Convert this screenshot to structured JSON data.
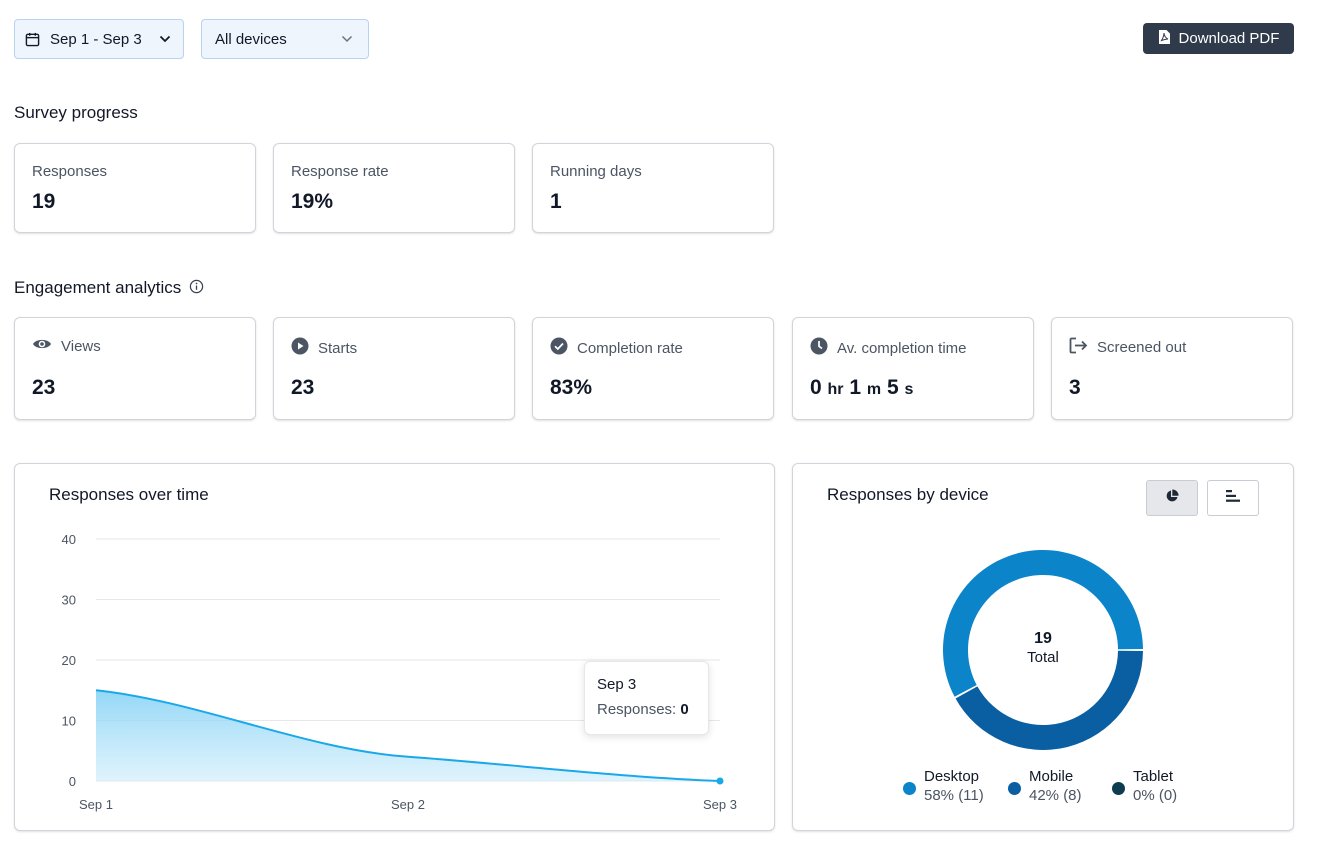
{
  "filters": {
    "date_range": "Sep 1 - Sep 3",
    "device": "All devices"
  },
  "toolbar": {
    "download_label": "Download PDF"
  },
  "survey_progress": {
    "title": "Survey progress",
    "cards": [
      {
        "label": "Responses",
        "value": "19"
      },
      {
        "label": "Response rate",
        "value": "19%"
      },
      {
        "label": "Running days",
        "value": "1"
      }
    ]
  },
  "engagement": {
    "title": "Engagement analytics",
    "cards": [
      {
        "label": "Views",
        "value": "23",
        "icon": "eye-icon"
      },
      {
        "label": "Starts",
        "value": "23",
        "icon": "play-icon"
      },
      {
        "label": "Completion rate",
        "value": "83%",
        "icon": "check-circle-icon"
      },
      {
        "label": "Av. completion time",
        "icon": "clock-icon",
        "time": {
          "hr": "0",
          "hr_unit": "hr",
          "m": "1",
          "m_unit": "m",
          "s": "5",
          "s_unit": "s"
        }
      },
      {
        "label": "Screened out",
        "value": "3",
        "icon": "exit-icon"
      }
    ]
  },
  "responses_over_time": {
    "title": "Responses over time",
    "tooltip": {
      "date": "Sep 3",
      "label": "Responses:",
      "value": "0"
    }
  },
  "responses_by_device": {
    "title": "Responses by device",
    "center_value": "19",
    "center_label": "Total",
    "legend": [
      {
        "name": "Desktop",
        "value": "58% (11)",
        "color": "#0b84c9"
      },
      {
        "name": "Mobile",
        "value": "42% (8)",
        "color": "#0a5fa3"
      },
      {
        "name": "Tablet",
        "value": "0% (0)",
        "color": "#0d3b4f"
      }
    ]
  },
  "chart_data": [
    {
      "type": "area",
      "title": "Responses over time",
      "categories": [
        "Sep 1",
        "Sep 2",
        "Sep 3"
      ],
      "series": [
        {
          "values": [
            15,
            4,
            0
          ]
        }
      ],
      "yticks": [
        "0",
        "10",
        "20",
        "30",
        "40"
      ],
      "ylim": [
        0,
        40
      ],
      "grid": true,
      "color": "#1ba8e8"
    },
    {
      "type": "pie",
      "title": "Responses by device",
      "categories": [
        "Desktop",
        "Mobile",
        "Tablet"
      ],
      "values": [
        11,
        8,
        0
      ],
      "colors": [
        "#0b84c9",
        "#0a5fa3",
        "#0d3b4f"
      ],
      "legend": "bottom"
    }
  ]
}
